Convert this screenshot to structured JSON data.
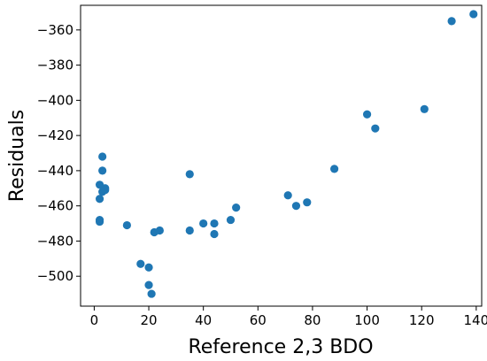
{
  "chart_data": {
    "type": "scatter",
    "title": "",
    "xlabel": "Reference 2,3 BDO",
    "ylabel": "Residuals",
    "xlim": [
      -5,
      142
    ],
    "ylim": [
      -517,
      -346
    ],
    "xticks": [
      0,
      20,
      40,
      60,
      80,
      100,
      120,
      140
    ],
    "yticks": [
      -500,
      -480,
      -460,
      -440,
      -420,
      -400,
      -380,
      -360
    ],
    "grid": false,
    "legend": "none",
    "marker_color": "#1f77b4",
    "series": [
      {
        "x": [
          2,
          2,
          2,
          2,
          3,
          3,
          3,
          4,
          4,
          12,
          17,
          20,
          20,
          21,
          22,
          24,
          35,
          35,
          40,
          44,
          44,
          50,
          52,
          71,
          74,
          78,
          88,
          100,
          103,
          121,
          131,
          139
        ],
        "y": [
          -469,
          -468,
          -456,
          -448,
          -432,
          -440,
          -452,
          -450,
          -451,
          -471,
          -493,
          -495,
          -505,
          -510,
          -475,
          -474,
          -442,
          -474,
          -470,
          -470,
          -476,
          -468,
          -461,
          -454,
          -460,
          -458,
          -439,
          -408,
          -416,
          -405,
          -355,
          -351
        ]
      }
    ]
  }
}
